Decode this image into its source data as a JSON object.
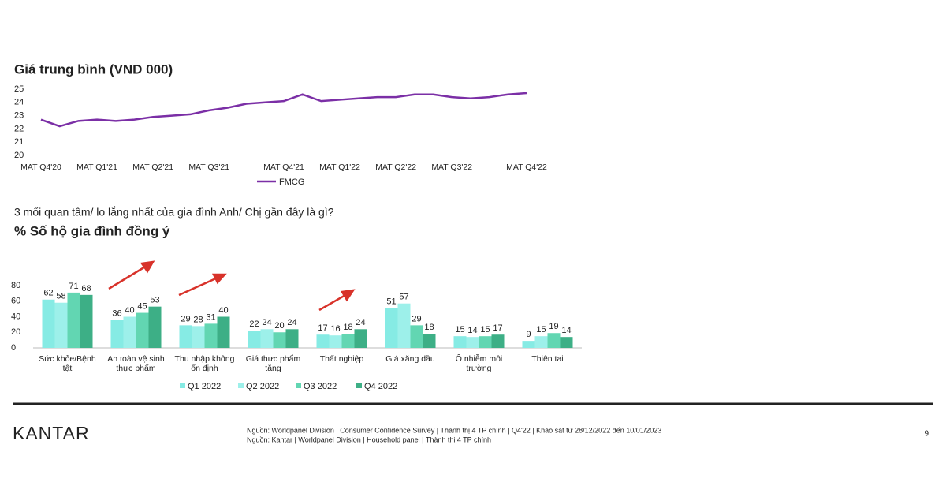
{
  "chart_data": [
    {
      "type": "line",
      "title": "Giá trung bình (VND 000)",
      "categories": [
        "MAT Q4'20",
        null,
        null,
        "MAT Q1'21",
        null,
        null,
        "MAT Q2'21",
        null,
        null,
        "MAT Q3'21",
        null,
        null,
        null,
        "MAT Q4'21",
        null,
        null,
        "MAT Q1'22",
        null,
        null,
        "MAT Q2'22",
        null,
        null,
        "MAT Q3'22",
        null,
        null,
        null,
        "MAT Q4'22"
      ],
      "series": [
        {
          "name": "FMCG",
          "color": "#7b2fa6",
          "values": [
            22.7,
            22.2,
            22.6,
            22.7,
            22.6,
            22.7,
            22.9,
            23.0,
            23.1,
            23.4,
            23.6,
            23.9,
            24.0,
            24.1,
            24.6,
            24.1,
            24.2,
            24.3,
            24.4,
            24.4,
            24.6,
            24.6,
            24.4,
            24.3,
            24.4,
            24.6,
            24.7
          ]
        }
      ],
      "ylim": [
        20,
        25
      ],
      "yticks": [
        20,
        21,
        22,
        23,
        24,
        25
      ]
    },
    {
      "type": "bar",
      "subtitle": "3 mối quan tâm/ lo lắng nhất của gia đình Anh/ Chị gần đây là gì?",
      "title": "% Số hộ gia đình đồng ý",
      "categories": [
        "Sức khỏe/Bệnh tật",
        "An toàn vệ sinh thực phẩm",
        "Thu nhập không ổn định",
        "Giá thực phẩm tăng",
        "Thất nghiệp",
        "Giá xăng dầu",
        "Ô nhiễm môi trường",
        "Thiên tai"
      ],
      "series": [
        {
          "name": "Q1  2022",
          "color": "#86ebe4",
          "values": [
            62,
            36,
            29,
            22,
            17,
            51,
            15,
            9
          ]
        },
        {
          "name": "Q2  2022",
          "color": "#9df0ea",
          "values": [
            58,
            40,
            28,
            24,
            16,
            57,
            14,
            15
          ]
        },
        {
          "name": "Q3  2022",
          "color": "#62d6b2",
          "values": [
            71,
            45,
            31,
            20,
            18,
            29,
            15,
            19
          ]
        },
        {
          "name": "Q4  2022",
          "color": "#3daf86",
          "values": [
            68,
            53,
            40,
            24,
            24,
            18,
            17,
            14
          ]
        }
      ],
      "ylim": [
        0,
        80
      ],
      "yticks": [
        0,
        20,
        40,
        60,
        80
      ]
    }
  ],
  "footer": {
    "logo": "KANTAR",
    "sources": [
      "Nguồn: Worldpanel Division | Consumer Confidence Survey | Thành thị 4 TP chính  | Q4'22  | Khảo sát từ 28/12/2022 đến 10/01/2023",
      "Nguồn: Kantar | Worldpanel Division  | Household panel | Thành thị 4 TP chính"
    ],
    "page": "9"
  }
}
